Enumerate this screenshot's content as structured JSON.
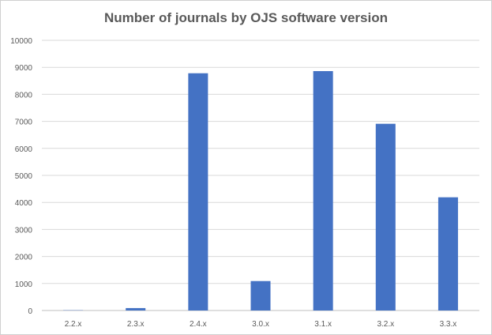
{
  "chart_data": {
    "type": "bar",
    "title": "Number of journals by OJS software version",
    "xlabel": "",
    "ylabel": "",
    "categories": [
      "2.2.x",
      "2.3.x",
      "2.4.x",
      "3.0.x",
      "3.1.x",
      "3.2.x",
      "3.3.x"
    ],
    "values": [
      10,
      90,
      8780,
      1090,
      8860,
      6910,
      4190
    ],
    "ylim": [
      0,
      10000
    ],
    "yticks": [
      0,
      1000,
      2000,
      3000,
      4000,
      5000,
      6000,
      7000,
      8000,
      9000,
      10000
    ],
    "grid": true,
    "legend": "none",
    "bar_color": "#4472c4",
    "grid_color": "#d9d9d9",
    "text_color": "#595959"
  }
}
